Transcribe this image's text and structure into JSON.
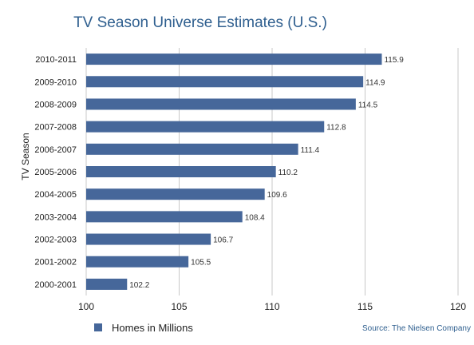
{
  "chart_data": {
    "type": "bar",
    "orientation": "horizontal",
    "title": "TV Season Universe Estimates (U.S.)",
    "xlabel": "",
    "ylabel": "TV Season",
    "categories": [
      "2010-2011",
      "2009-2010",
      "2008-2009",
      "2007-2008",
      "2006-2007",
      "2005-2006",
      "2004-2005",
      "2003-2004",
      "2002-2003",
      "2001-2002",
      "2000-2001"
    ],
    "series": [
      {
        "name": "Homes in Millions",
        "values": [
          115.9,
          114.9,
          114.5,
          112.8,
          111.4,
          110.2,
          109.6,
          108.4,
          106.7,
          105.5,
          102.2
        ],
        "value_labels": [
          "115.9",
          "114.9",
          "114.5",
          "112.8",
          "111.4",
          "110.2",
          "109.6",
          "108.4",
          "106.7",
          "105.5",
          "102.2"
        ]
      }
    ],
    "xlim": [
      100,
      120
    ],
    "xticks": [
      100,
      105,
      110,
      115,
      120
    ],
    "grid": true,
    "legend": "bottom-left",
    "source": "Source: The Nielsen Company",
    "colors": {
      "bar": "#46679a",
      "title": "#2f5f8f",
      "grid": "#c8c8c8",
      "source": "#2f5f8f"
    }
  }
}
